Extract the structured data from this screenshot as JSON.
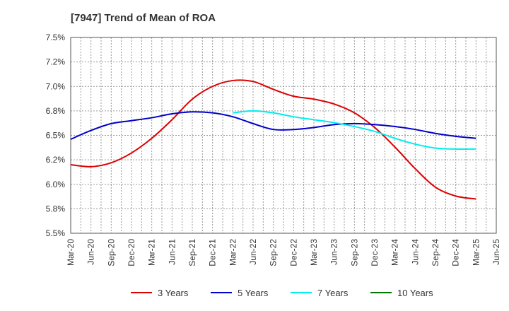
{
  "chart_data": {
    "type": "line",
    "title": "[7947]  Trend of Mean of ROA",
    "xlabel": "",
    "ylabel": "",
    "ylim": [
      5.5,
      7.5
    ],
    "grid": true,
    "legend_position": "bottom",
    "x_ticks": [
      "Mar-20",
      "Jun-20",
      "Sep-20",
      "Dec-20",
      "Mar-21",
      "Jun-21",
      "Sep-21",
      "Dec-21",
      "Mar-22",
      "Jun-22",
      "Sep-22",
      "Dec-22",
      "Mar-23",
      "Jun-23",
      "Sep-23",
      "Dec-23",
      "Mar-24",
      "Jun-24",
      "Sep-24",
      "Dec-24",
      "Mar-25",
      "Jun-25"
    ],
    "y_ticks": [
      {
        "value": 5.5,
        "label": "5.5%"
      },
      {
        "value": 5.75,
        "label": "5.8%"
      },
      {
        "value": 6.0,
        "label": "6.0%"
      },
      {
        "value": 6.25,
        "label": "6.2%"
      },
      {
        "value": 6.5,
        "label": "6.5%"
      },
      {
        "value": 6.75,
        "label": "6.8%"
      },
      {
        "value": 7.0,
        "label": "7.0%"
      },
      {
        "value": 7.25,
        "label": "7.2%"
      },
      {
        "value": 7.5,
        "label": "7.5%"
      }
    ],
    "series": [
      {
        "name": "3 Years",
        "color": "#dd0000",
        "values": [
          6.2,
          6.18,
          6.22,
          6.32,
          6.47,
          6.66,
          6.87,
          7.0,
          7.06,
          7.05,
          6.97,
          6.9,
          6.87,
          6.82,
          6.73,
          6.58,
          6.38,
          6.16,
          5.97,
          5.88,
          5.85,
          null
        ]
      },
      {
        "name": "5 Years",
        "color": "#0000cc",
        "values": [
          6.46,
          6.55,
          6.62,
          6.65,
          6.68,
          6.72,
          6.74,
          6.73,
          6.69,
          6.62,
          6.56,
          6.56,
          6.58,
          6.61,
          6.62,
          6.61,
          6.59,
          6.56,
          6.52,
          6.49,
          6.47,
          null
        ]
      },
      {
        "name": "7 Years",
        "color": "#00eeee",
        "values": [
          null,
          null,
          null,
          null,
          null,
          null,
          null,
          null,
          6.73,
          6.75,
          6.73,
          6.69,
          6.66,
          6.63,
          6.59,
          6.54,
          6.47,
          6.41,
          6.37,
          6.36,
          6.36,
          null
        ]
      },
      {
        "name": "10 Years",
        "color": "#007700",
        "values": [
          null,
          null,
          null,
          null,
          null,
          null,
          null,
          null,
          null,
          null,
          null,
          null,
          null,
          null,
          null,
          null,
          null,
          null,
          null,
          null,
          null,
          null
        ]
      }
    ]
  }
}
